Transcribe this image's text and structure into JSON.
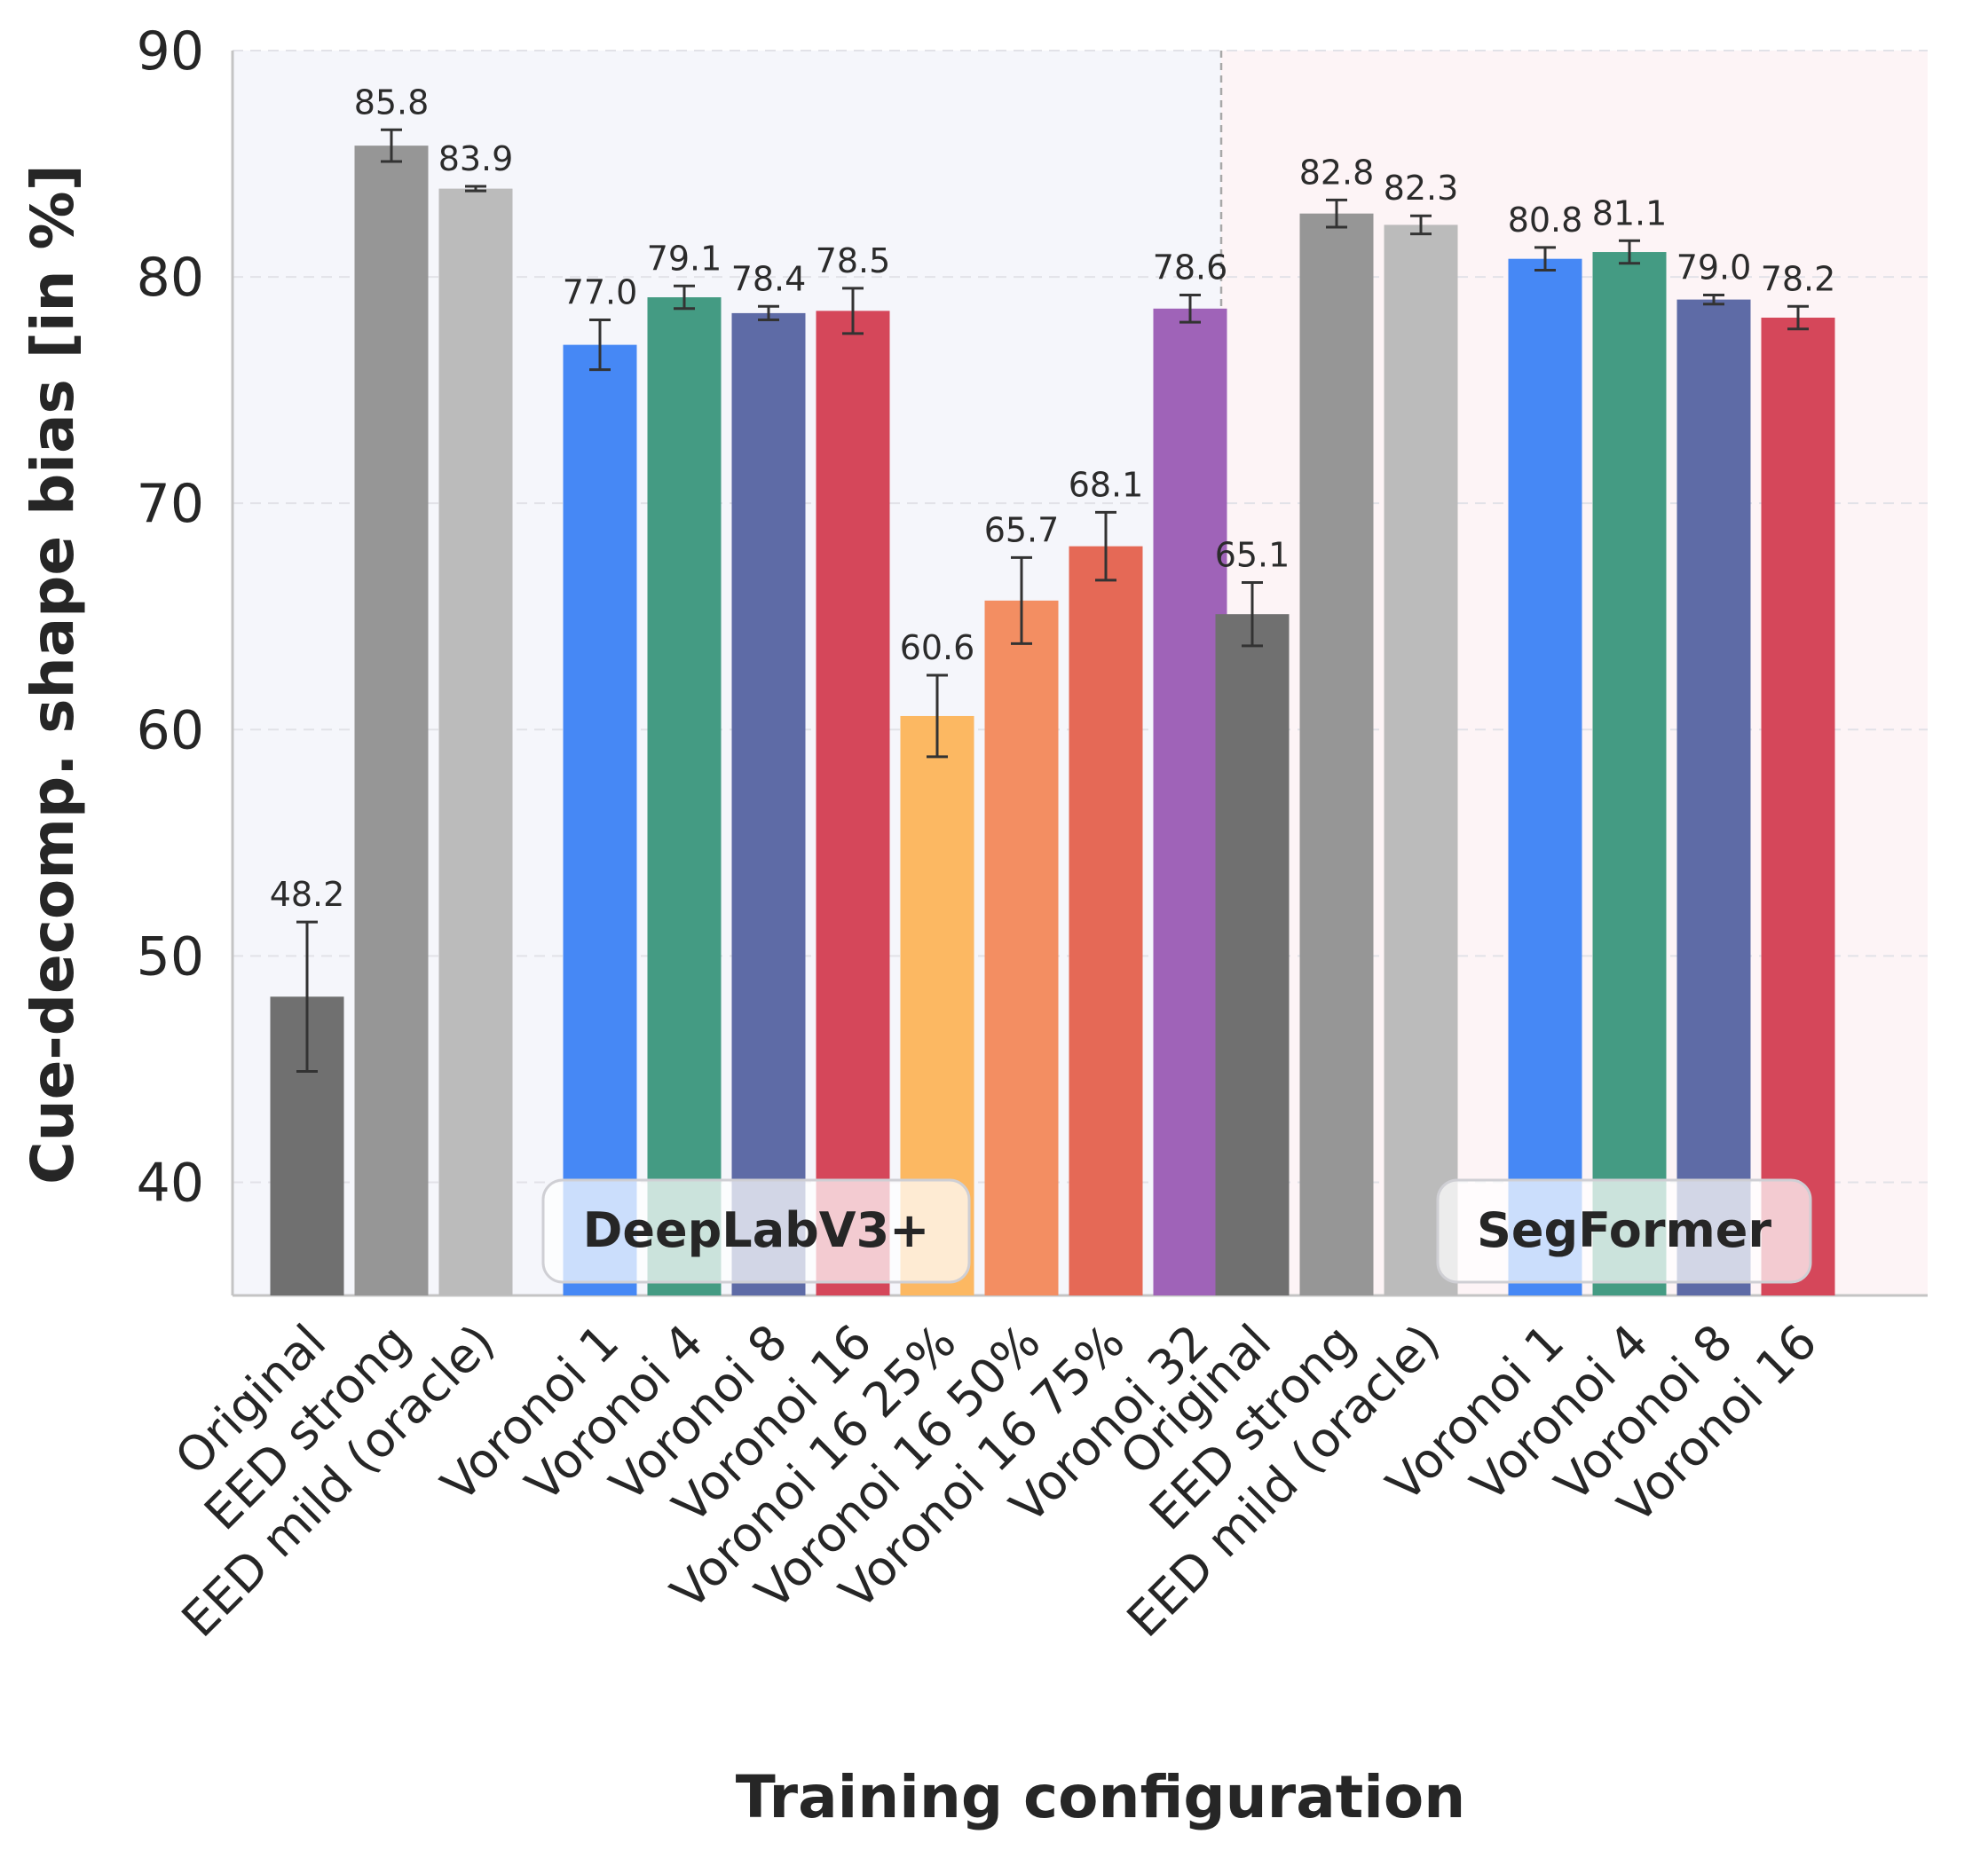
{
  "chart_data": {
    "type": "bar",
    "xlabel": "Training configuration",
    "ylabel": "Cue-decomp. shape bias [in %]",
    "ylim": [
      35,
      90
    ],
    "yticks": [
      40,
      50,
      60,
      70,
      80,
      90
    ],
    "grid": "horizontal dashed",
    "groups": [
      {
        "name": "DeepLabV3+",
        "background": "#f5f6fb",
        "bars": [
          {
            "label": "Original",
            "value": 48.2,
            "err": 3.3,
            "color": "#707070"
          },
          {
            "label": "EED strong",
            "value": 85.8,
            "err": 0.7,
            "color": "#969696"
          },
          {
            "label": "EED mild (oracle)",
            "value": 83.9,
            "err": 0.1,
            "color": "#bbbbbb"
          },
          {
            "label": "Voronoi 1",
            "value": 77.0,
            "err": 1.1,
            "color": "#4688f5"
          },
          {
            "label": "Voronoi 4",
            "value": 79.1,
            "err": 0.5,
            "color": "#449b83"
          },
          {
            "label": "Voronoi 8",
            "value": 78.4,
            "err": 0.3,
            "color": "#5e6ba6"
          },
          {
            "label": "Voronoi 16",
            "value": 78.5,
            "err": 1.0,
            "color": "#d5475a"
          },
          {
            "label": "Voronoi 16 25%",
            "value": 60.6,
            "err": 1.8,
            "color": "#fcb862"
          },
          {
            "label": "Voronoi 16 50%",
            "value": 65.7,
            "err": 1.9,
            "color": "#f38e62"
          },
          {
            "label": "Voronoi 16 75%",
            "value": 68.1,
            "err": 1.5,
            "color": "#e56956"
          },
          {
            "label": "Voronoi 32",
            "value": 78.6,
            "err": 0.6,
            "color": "#9f63b8"
          }
        ]
      },
      {
        "name": "SegFormer",
        "background": "#fdf4f6",
        "bars": [
          {
            "label": "Original",
            "value": 65.1,
            "err": 1.4,
            "color": "#707070"
          },
          {
            "label": "EED strong",
            "value": 82.8,
            "err": 0.6,
            "color": "#969696"
          },
          {
            "label": "EED mild (oracle)",
            "value": 82.3,
            "err": 0.4,
            "color": "#bbbbbb"
          },
          {
            "label": "Voronoi 1",
            "value": 80.8,
            "err": 0.5,
            "color": "#4688f5"
          },
          {
            "label": "Voronoi 4",
            "value": 81.1,
            "err": 0.5,
            "color": "#449b83"
          },
          {
            "label": "Voronoi 8",
            "value": 79.0,
            "err": 0.2,
            "color": "#5e6ba6"
          },
          {
            "label": "Voronoi 16",
            "value": 78.2,
            "err": 0.5,
            "color": "#d5475a"
          }
        ]
      }
    ]
  }
}
